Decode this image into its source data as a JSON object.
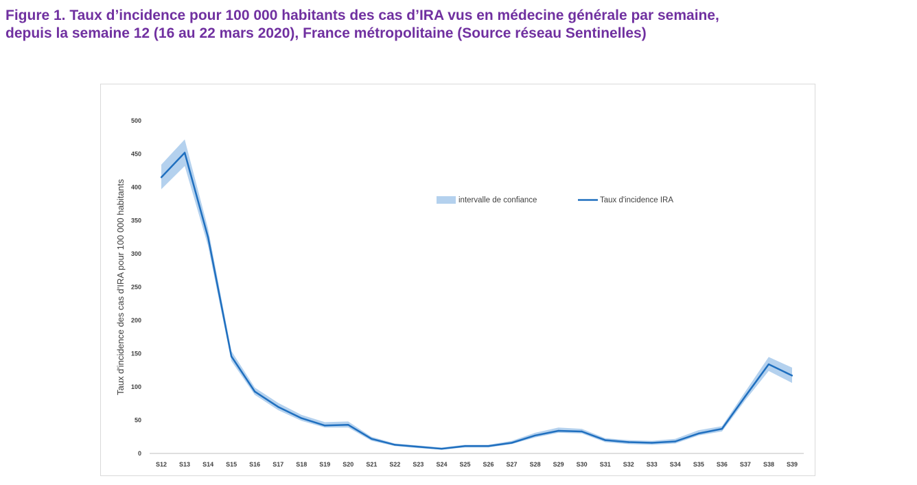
{
  "figure": {
    "title_line1": "Figure 1. Taux d’incidence pour 100 000 habitants des cas d’IRA vus en médecine générale par semaine,",
    "title_line2": "depuis la semaine 12 (16 au 22 mars 2020), France métropolitaine (Source réseau Sentinelles)"
  },
  "chart_data": {
    "type": "line",
    "title": "Figure 1. Taux d’incidence pour 100 000 habitants des cas d’IRA vus en médecine générale par semaine, depuis la semaine 12 (16 au 22 mars 2020), France métropolitaine (Source réseau Sentinelles)",
    "xlabel": "",
    "ylabel": "Taux d'incidence des cas d'IRA pour 100 000 habitants",
    "categories": [
      "S12",
      "S13",
      "S14",
      "S15",
      "S16",
      "S17",
      "S18",
      "S19",
      "S20",
      "S21",
      "S22",
      "S23",
      "S24",
      "S25",
      "S26",
      "S27",
      "S28",
      "S29",
      "S30",
      "S31",
      "S32",
      "S33",
      "S34",
      "S35",
      "S36",
      "S37",
      "S38",
      "S39"
    ],
    "ylim": [
      0,
      500
    ],
    "yticks": [
      0,
      50,
      100,
      150,
      200,
      250,
      300,
      350,
      400,
      450,
      500
    ],
    "grid": false,
    "legend_position": "center-right",
    "series": [
      {
        "name": "Taux d'incidence IRA",
        "kind": "line",
        "color": "#1f6fbf",
        "values": [
          415,
          452,
          325,
          146,
          93,
          70,
          53,
          42,
          43,
          22,
          13,
          10,
          7,
          11,
          11,
          16,
          27,
          34,
          33,
          20,
          17,
          16,
          18,
          30,
          37,
          86,
          134,
          117
        ]
      },
      {
        "name": "intervalle de confiance",
        "kind": "band",
        "color": "#b4d1ee",
        "lower": [
          397,
          432,
          312,
          139,
          88,
          65,
          49,
          39,
          39,
          19,
          11,
          8,
          6,
          9,
          9,
          14,
          24,
          31,
          30,
          17,
          14,
          13,
          15,
          27,
          33,
          80,
          124,
          106
        ],
        "upper": [
          434,
          472,
          338,
          154,
          99,
          76,
          58,
          47,
          48,
          25,
          15,
          12,
          9,
          13,
          13,
          19,
          31,
          39,
          37,
          23,
          20,
          19,
          22,
          35,
          41,
          93,
          145,
          129
        ]
      }
    ]
  }
}
